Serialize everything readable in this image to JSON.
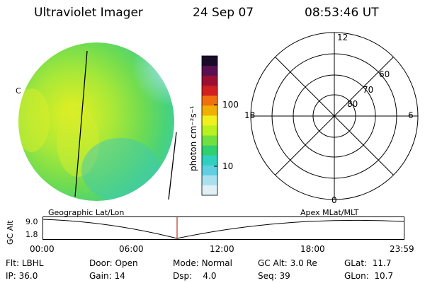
{
  "header": {
    "instrument": "Ultraviolet Imager",
    "date": "24 Sep 07",
    "time": "08:53:46 UT"
  },
  "image_panel": {
    "edge_marker": "C",
    "footer_label": "Geographic Lat/Lon"
  },
  "colorbar": {
    "unit_label": "photon cm⁻²s⁻¹",
    "tick_labels": [
      "100",
      "10"
    ],
    "colors": [
      "#1a0a2a",
      "#5a1050",
      "#9a1030",
      "#d02020",
      "#f07010",
      "#f0b000",
      "#f0f020",
      "#b8f020",
      "#70e040",
      "#30d070",
      "#30d0c0",
      "#60d0e0",
      "#a8e0ee",
      "#e0f0f4"
    ]
  },
  "polar_plot": {
    "mlt_labels": {
      "top": "12",
      "right": "6",
      "bottom": "0",
      "left": "18"
    },
    "lat_labels": [
      "60",
      "70",
      "80"
    ],
    "footer_label": "Apex MLat/MLT"
  },
  "altitude_plot": {
    "ylabel": "GC Alt",
    "y_ticks": [
      "9.0",
      "1.8"
    ],
    "x_ticks": [
      "00:00",
      "06:00",
      "12:00",
      "18:00",
      "23:59"
    ],
    "marker_color": "#c03020"
  },
  "status": {
    "row1": [
      {
        "label": "Flt:",
        "value": "LBHL"
      },
      {
        "label": "Door:",
        "value": "Open"
      },
      {
        "label": "Mode:",
        "value": "Normal"
      },
      {
        "label": "GC Alt:",
        "value": "3.0 Re"
      },
      {
        "label": "GLat:",
        "value": "11.7"
      }
    ],
    "row2": [
      {
        "label": "IP:",
        "value": "36.0"
      },
      {
        "label": "Gain:",
        "value": "14"
      },
      {
        "label": "Dsp:",
        "value": "4.0"
      },
      {
        "label": "Seq:",
        "value": "39"
      },
      {
        "label": "GLon:",
        "value": "10.7"
      }
    ]
  }
}
